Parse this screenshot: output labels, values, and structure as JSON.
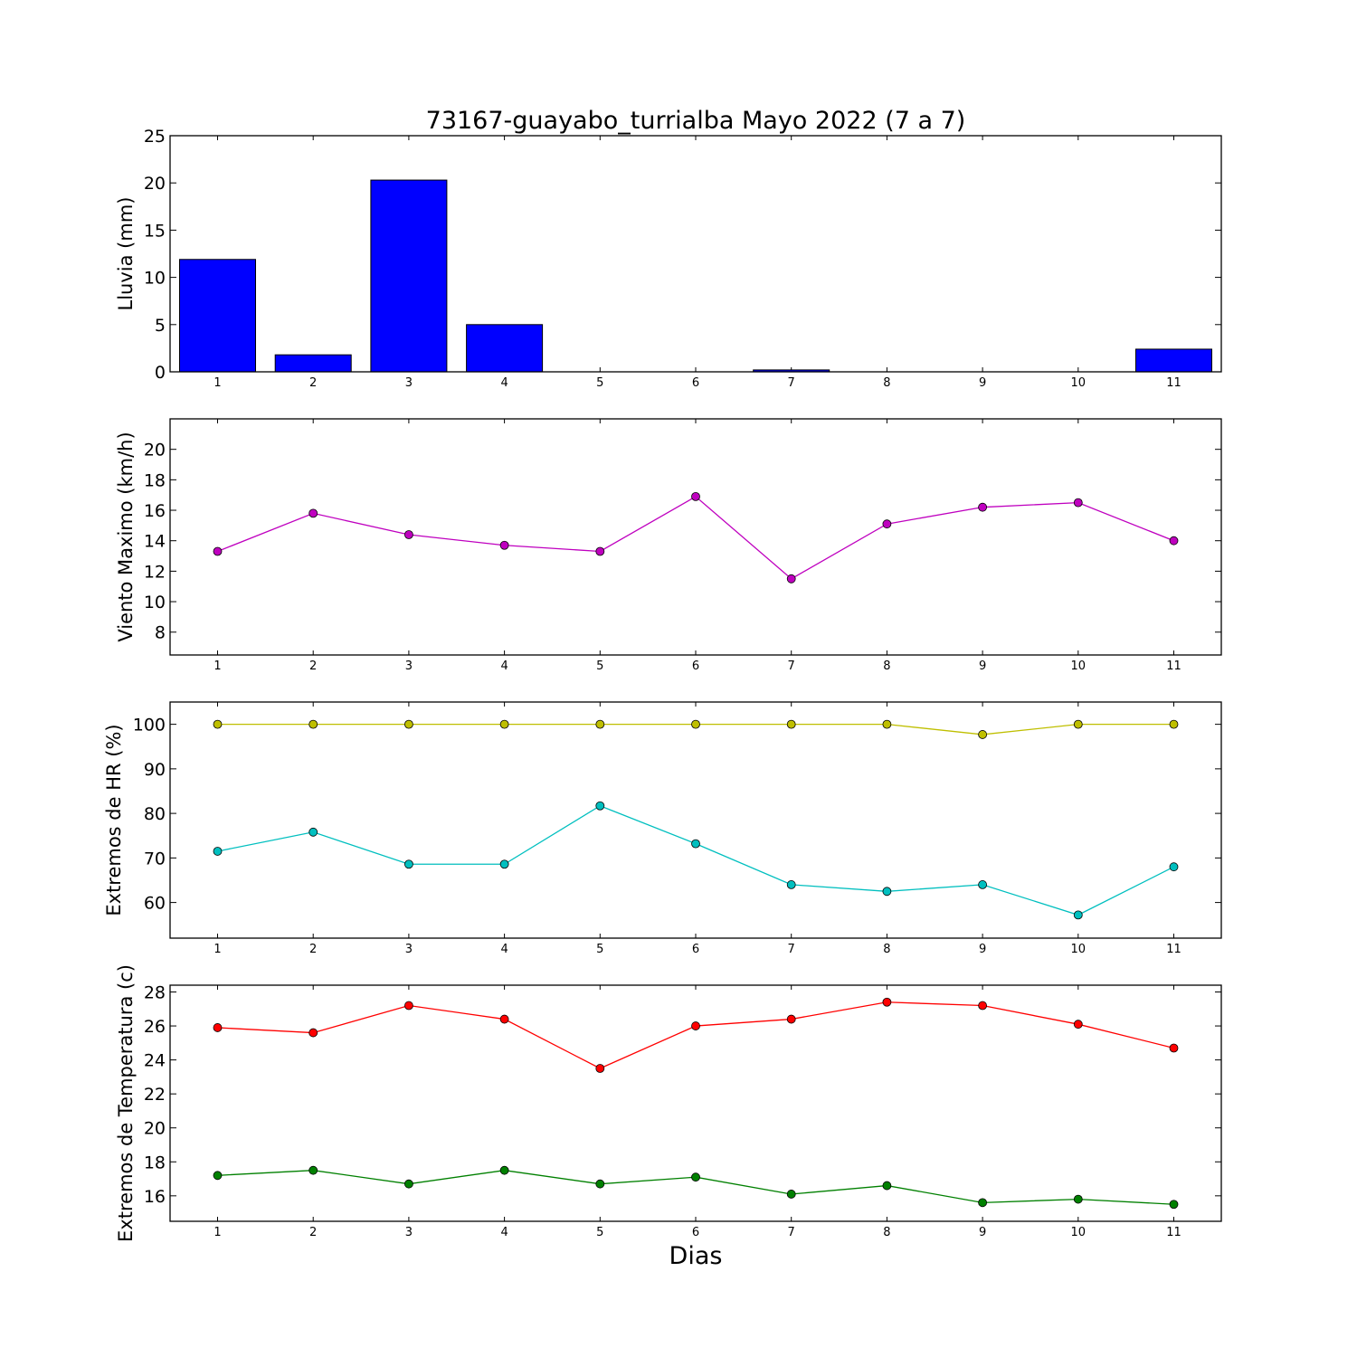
{
  "chart_data": [
    {
      "type": "bar",
      "title": "73167-guayabo_turrialba Mayo 2022  (7 a 7)",
      "ylabel": "Lluvia (mm)",
      "categories": [
        "1",
        "2",
        "3",
        "4",
        "5",
        "6",
        "7",
        "8",
        "9",
        "10",
        "11"
      ],
      "values": [
        11.9,
        1.8,
        20.3,
        5.0,
        0.0,
        0.0,
        0.2,
        0.0,
        0.0,
        0.0,
        2.4
      ],
      "ylim": [
        0,
        25
      ],
      "yticks": [
        "0",
        "5",
        "10",
        "15",
        "20",
        "25"
      ],
      "color": "#0000ff"
    },
    {
      "type": "line",
      "ylabel": "Viento Maximo (km/h)",
      "x": [
        "1",
        "2",
        "3",
        "4",
        "5",
        "6",
        "7",
        "8",
        "9",
        "10",
        "11"
      ],
      "series": [
        {
          "values": [
            13.3,
            15.8,
            14.4,
            13.7,
            13.3,
            16.9,
            11.5,
            15.1,
            16.2,
            16.5,
            14.0
          ],
          "color": "#bf00bf"
        }
      ],
      "ylim": [
        6.5,
        22
      ],
      "yticks": [
        "8",
        "10",
        "12",
        "14",
        "16",
        "18",
        "20"
      ]
    },
    {
      "type": "line",
      "ylabel": "Extremos de HR (%)",
      "x": [
        "1",
        "2",
        "3",
        "4",
        "5",
        "6",
        "7",
        "8",
        "9",
        "10",
        "11"
      ],
      "series": [
        {
          "values": [
            100,
            100,
            100,
            100,
            100,
            100,
            100,
            100,
            97.7,
            100,
            100
          ],
          "color": "#bfbf00"
        },
        {
          "values": [
            71.5,
            75.8,
            68.6,
            68.6,
            81.7,
            73.2,
            64.0,
            62.5,
            64.0,
            57.2,
            68.0
          ],
          "color": "#00bfbf"
        }
      ],
      "ylim": [
        52,
        105
      ],
      "yticks": [
        "60",
        "70",
        "80",
        "90",
        "100"
      ]
    },
    {
      "type": "line",
      "ylabel": "Extremos de Temperatura (c)",
      "xlabel": "Dias",
      "x": [
        "1",
        "2",
        "3",
        "4",
        "5",
        "6",
        "7",
        "8",
        "9",
        "10",
        "11"
      ],
      "series": [
        {
          "values": [
            25.9,
            25.6,
            27.2,
            26.4,
            23.5,
            26.0,
            26.4,
            27.4,
            27.2,
            26.1,
            24.7
          ],
          "color": "#ff0000"
        },
        {
          "values": [
            17.2,
            17.5,
            16.7,
            17.5,
            16.7,
            17.1,
            16.1,
            16.6,
            15.6,
            15.8,
            15.5
          ],
          "color": "#008000"
        }
      ],
      "ylim": [
        14.5,
        28.4
      ],
      "yticks": [
        "16",
        "18",
        "20",
        "22",
        "24",
        "26",
        "28"
      ]
    }
  ]
}
